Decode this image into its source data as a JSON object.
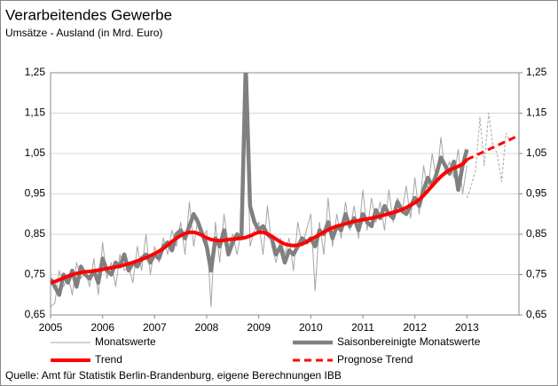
{
  "chart_data": {
    "type": "line",
    "title": "Verarbeitendes Gewerbe",
    "subtitle": "Umsätze - Ausland (in Mrd. Euro)",
    "source": "Quelle: Amt für Statistik Berlin-Brandenburg, eigene Berechnungen IBB",
    "x": [
      2005,
      2005.083,
      2005.167,
      2005.25,
      2005.333,
      2005.417,
      2005.5,
      2005.583,
      2005.667,
      2005.75,
      2005.833,
      2005.917,
      2006,
      2006.083,
      2006.167,
      2006.25,
      2006.333,
      2006.417,
      2006.5,
      2006.583,
      2006.667,
      2006.75,
      2006.833,
      2006.917,
      2007,
      2007.083,
      2007.167,
      2007.25,
      2007.333,
      2007.417,
      2007.5,
      2007.583,
      2007.667,
      2007.75,
      2007.833,
      2007.917,
      2008,
      2008.083,
      2008.167,
      2008.25,
      2008.333,
      2008.417,
      2008.5,
      2008.583,
      2008.667,
      2008.75,
      2008.833,
      2008.917,
      2009,
      2009.083,
      2009.167,
      2009.25,
      2009.333,
      2009.417,
      2009.5,
      2009.583,
      2009.667,
      2009.75,
      2009.833,
      2009.917,
      2010,
      2010.083,
      2010.167,
      2010.25,
      2010.333,
      2010.417,
      2010.5,
      2010.583,
      2010.667,
      2010.75,
      2010.833,
      2010.917,
      2011,
      2011.083,
      2011.167,
      2011.25,
      2011.333,
      2011.417,
      2011.5,
      2011.583,
      2011.667,
      2011.75,
      2011.833,
      2011.917,
      2012,
      2012.083,
      2012.167,
      2012.25,
      2012.333,
      2012.417,
      2012.5,
      2012.583,
      2012.667,
      2012.75,
      2012.833,
      2012.917,
      2013,
      2013.083,
      2013.167,
      2013.25,
      2013.333,
      2013.417,
      2013.5,
      2013.583,
      2013.667,
      2013.75,
      2013.833,
      2013.917,
      2014
    ],
    "xlim": [
      2005,
      2014
    ],
    "xticks": [
      2005,
      2006,
      2007,
      2008,
      2009,
      2010,
      2011,
      2012,
      2013
    ],
    "ylim": [
      0.65,
      1.25
    ],
    "yticks": [
      {
        "value": 0.65,
        "label": "0,65"
      },
      {
        "value": 0.75,
        "label": "0,75"
      },
      {
        "value": 0.85,
        "label": "0,85"
      },
      {
        "value": 0.95,
        "label": "0,95"
      },
      {
        "value": 1.05,
        "label": "1,05"
      },
      {
        "value": 1.15,
        "label": "1,15"
      },
      {
        "value": 1.25,
        "label": "1,25"
      }
    ],
    "y2lim": [
      0.65,
      1.25
    ],
    "y2ticks": [
      {
        "value": 0.65,
        "label": "0,65"
      },
      {
        "value": 0.75,
        "label": "0,75"
      },
      {
        "value": 0.85,
        "label": "0,85"
      },
      {
        "value": 0.95,
        "label": "0,95"
      },
      {
        "value": 1.05,
        "label": "1,05"
      },
      {
        "value": 1.15,
        "label": "1,15"
      },
      {
        "value": 1.25,
        "label": "1,25"
      }
    ],
    "grid": true,
    "series": [
      {
        "name": "Monatswerte",
        "color": "#a6a6a6",
        "line_width": 1,
        "dashed": false,
        "values": [
          0.67,
          0.68,
          0.76,
          0.72,
          0.75,
          0.7,
          0.78,
          0.74,
          0.76,
          0.72,
          0.79,
          0.7,
          0.83,
          0.74,
          0.78,
          0.72,
          0.8,
          0.76,
          0.77,
          0.73,
          0.82,
          0.76,
          0.85,
          0.75,
          0.82,
          0.78,
          0.84,
          0.8,
          0.86,
          0.82,
          0.88,
          0.8,
          0.93,
          0.82,
          0.89,
          0.84,
          0.86,
          0.67,
          0.88,
          0.78,
          0.9,
          0.82,
          0.85,
          0.8,
          0.86,
          1.28,
          0.82,
          0.86,
          0.88,
          0.8,
          0.92,
          0.82,
          0.78,
          0.84,
          0.8,
          0.84,
          0.76,
          0.88,
          0.82,
          0.86,
          0.9,
          0.71,
          0.88,
          0.8,
          0.94,
          0.82,
          0.9,
          0.84,
          0.93,
          0.86,
          0.92,
          0.84,
          0.96,
          0.86,
          0.94,
          0.88,
          0.93,
          0.86,
          0.96,
          0.88,
          0.94,
          0.9,
          0.97,
          0.89,
          0.99,
          0.9,
          1.02,
          0.96,
          1.05,
          0.98,
          1.09,
          1.0,
          1.03,
          0.99,
          1.06,
          0.95,
          1.02,
          null,
          null,
          null,
          null,
          null,
          null,
          null,
          null,
          null,
          null,
          null,
          null
        ]
      },
      {
        "name": "Saisonbereinigte Monatswerte",
        "color": "#808080",
        "line_width": 4.5,
        "dashed": false,
        "values": [
          0.74,
          0.72,
          0.7,
          0.75,
          0.73,
          0.76,
          0.72,
          0.77,
          0.75,
          0.74,
          0.76,
          0.73,
          0.79,
          0.76,
          0.75,
          0.78,
          0.77,
          0.8,
          0.76,
          0.78,
          0.77,
          0.79,
          0.8,
          0.78,
          0.8,
          0.79,
          0.82,
          0.83,
          0.81,
          0.85,
          0.86,
          0.84,
          0.87,
          0.9,
          0.88,
          0.85,
          0.82,
          0.76,
          0.84,
          0.82,
          0.86,
          0.8,
          0.83,
          0.85,
          0.84,
          1.27,
          0.92,
          0.88,
          0.86,
          0.87,
          0.85,
          0.84,
          0.8,
          0.82,
          0.78,
          0.81,
          0.8,
          0.82,
          0.84,
          0.83,
          0.84,
          0.82,
          0.86,
          0.85,
          0.88,
          0.84,
          0.87,
          0.86,
          0.9,
          0.87,
          0.89,
          0.86,
          0.9,
          0.88,
          0.87,
          0.91,
          0.89,
          0.92,
          0.9,
          0.89,
          0.93,
          0.91,
          0.9,
          0.92,
          0.94,
          0.92,
          0.96,
          0.99,
          0.97,
          1.0,
          1.04,
          1.02,
          1.0,
          1.03,
          0.96,
          1.02,
          1.06,
          null,
          null,
          null,
          null,
          null,
          null,
          null,
          null,
          null,
          null,
          null,
          null
        ]
      },
      {
        "color": "#a6a6a6",
        "line_width": 1,
        "dashed": true,
        "values": [
          null,
          null,
          null,
          null,
          null,
          null,
          null,
          null,
          null,
          null,
          null,
          null,
          null,
          null,
          null,
          null,
          null,
          null,
          null,
          null,
          null,
          null,
          null,
          null,
          null,
          null,
          null,
          null,
          null,
          null,
          null,
          null,
          null,
          null,
          null,
          null,
          null,
          null,
          null,
          null,
          null,
          null,
          null,
          null,
          null,
          null,
          null,
          null,
          null,
          null,
          null,
          null,
          null,
          null,
          null,
          null,
          null,
          null,
          null,
          null,
          null,
          null,
          null,
          null,
          null,
          null,
          null,
          null,
          null,
          null,
          null,
          null,
          null,
          null,
          null,
          null,
          null,
          null,
          null,
          null,
          null,
          null,
          null,
          null,
          null,
          null,
          null,
          null,
          null,
          null,
          null,
          null,
          null,
          null,
          null,
          null,
          0.94,
          0.97,
          1.01,
          1.14,
          1.02,
          1.15,
          1.07,
          1.05,
          0.98,
          1.1,
          1.08,
          null,
          null
        ]
      },
      {
        "name": "Trend",
        "color": "#ff0000",
        "line_width": 4,
        "dashed": false,
        "values": [
          0.73,
          0.733,
          0.737,
          0.742,
          0.746,
          0.75,
          0.753,
          0.755,
          0.757,
          0.758,
          0.759,
          0.761,
          0.763,
          0.765,
          0.767,
          0.769,
          0.771,
          0.774,
          0.777,
          0.78,
          0.784,
          0.788,
          0.792,
          0.797,
          0.802,
          0.808,
          0.815,
          0.823,
          0.832,
          0.84,
          0.847,
          0.852,
          0.855,
          0.855,
          0.852,
          0.847,
          0.841,
          0.837,
          0.835,
          0.834,
          0.835,
          0.837,
          0.838,
          0.839,
          0.84,
          0.842,
          0.846,
          0.851,
          0.855,
          0.855,
          0.851,
          0.845,
          0.838,
          0.831,
          0.826,
          0.823,
          0.822,
          0.823,
          0.826,
          0.831,
          0.837,
          0.843,
          0.849,
          0.855,
          0.861,
          0.866,
          0.87,
          0.873,
          0.876,
          0.879,
          0.882,
          0.884,
          0.886,
          0.888,
          0.89,
          0.892,
          0.895,
          0.898,
          0.901,
          0.904,
          0.907,
          0.911,
          0.916,
          0.922,
          0.928,
          0.936,
          0.946,
          0.958,
          0.97,
          0.982,
          0.993,
          1.002,
          1.009,
          1.014,
          1.018,
          1.024,
          1.035,
          null,
          null,
          null,
          null,
          null,
          null,
          null,
          null,
          null,
          null,
          null,
          null
        ]
      },
      {
        "name": "Prognose Trend",
        "color": "#ff0000",
        "line_width": 3,
        "dashed": true,
        "values": [
          null,
          null,
          null,
          null,
          null,
          null,
          null,
          null,
          null,
          null,
          null,
          null,
          null,
          null,
          null,
          null,
          null,
          null,
          null,
          null,
          null,
          null,
          null,
          null,
          null,
          null,
          null,
          null,
          null,
          null,
          null,
          null,
          null,
          null,
          null,
          null,
          null,
          null,
          null,
          null,
          null,
          null,
          null,
          null,
          null,
          null,
          null,
          null,
          null,
          null,
          null,
          null,
          null,
          null,
          null,
          null,
          null,
          null,
          null,
          null,
          null,
          null,
          null,
          null,
          null,
          null,
          null,
          null,
          null,
          null,
          null,
          null,
          null,
          null,
          null,
          null,
          null,
          null,
          null,
          null,
          null,
          null,
          null,
          null,
          null,
          null,
          null,
          null,
          null,
          null,
          null,
          null,
          null,
          null,
          null,
          null,
          1.035,
          1.04,
          1.045,
          1.05,
          1.055,
          1.06,
          1.065,
          1.07,
          1.075,
          1.08,
          1.085,
          1.09,
          1.095
        ]
      }
    ]
  }
}
